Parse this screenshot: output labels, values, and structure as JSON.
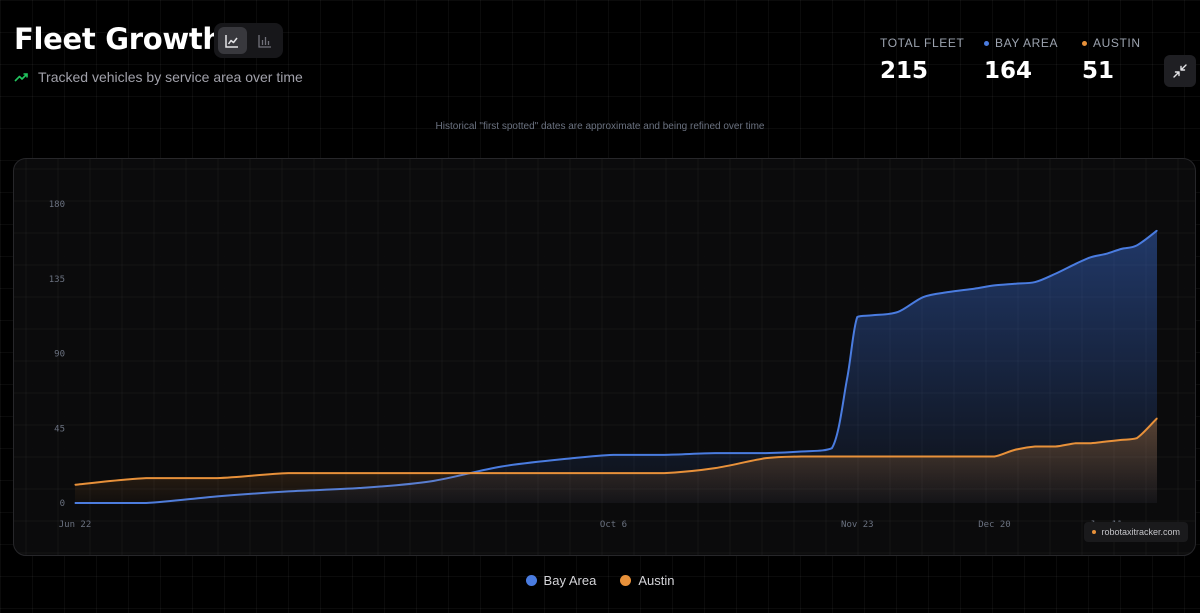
{
  "header": {
    "title": "Fleet Growth",
    "subtitle": "Tracked vehicles by service area over time"
  },
  "view_toggle": {
    "options": [
      "area-chart-icon",
      "bar-chart-icon"
    ],
    "active": "area-chart-icon"
  },
  "stats": [
    {
      "label": "TOTAL FLEET",
      "value": "215",
      "color": ""
    },
    {
      "label": "BAY AREA",
      "value": "164",
      "color": "#4a7ce0"
    },
    {
      "label": "AUSTIN",
      "value": "51",
      "color": "#e8913a"
    }
  ],
  "note": "Historical \"first spotted\" dates are approximate and being refined over time",
  "watermark": "robotaxitracker.com",
  "colors": {
    "bay_area": "#4a7ce0",
    "austin": "#e8913a",
    "accent_green": "#22c55e"
  },
  "chart_data": {
    "type": "area",
    "title": "",
    "xlabel": "",
    "ylabel": "",
    "x_ticks": [
      "Jun 22",
      "Oct 6",
      "Nov 23",
      "Dec 20",
      "Jan 11"
    ],
    "y_ticks": [
      "0",
      "45",
      "90",
      "135",
      "180"
    ],
    "ylim": [
      0,
      180
    ],
    "grid": true,
    "legend_position": "bottom-center",
    "x": [
      "Jun 22",
      "Jul 6",
      "Jul 20",
      "Aug 3",
      "Aug 17",
      "Aug 31",
      "Sep 14",
      "Sep 28",
      "Oct 6",
      "Oct 16",
      "Oct 26",
      "Nov 5",
      "Nov 12",
      "Nov 18",
      "Nov 21",
      "Nov 23",
      "Nov 26",
      "Dec 1",
      "Dec 6",
      "Dec 11",
      "Dec 16",
      "Dec 20",
      "Dec 24",
      "Dec 28",
      "Jan 1",
      "Jan 5",
      "Jan 8",
      "Jan 11",
      "Jan 14",
      "Jan 17",
      "Jan 21"
    ],
    "series": [
      {
        "name": "Bay Area",
        "color": "#4a7ce0",
        "values": [
          0,
          0,
          4,
          7,
          9,
          13,
          22,
          27,
          29,
          29,
          30,
          30,
          31,
          33,
          75,
          112,
          113,
          115,
          124,
          127,
          129,
          131,
          132,
          133,
          138,
          144,
          148,
          150,
          153,
          155,
          164
        ]
      },
      {
        "name": "Austin",
        "color": "#e8913a",
        "values": [
          11,
          15,
          15,
          18,
          18,
          18,
          18,
          18,
          18,
          18,
          21,
          27,
          28,
          28,
          28,
          28,
          28,
          28,
          28,
          28,
          28,
          28,
          32,
          34,
          34,
          36,
          36,
          37,
          38,
          39,
          51
        ]
      }
    ]
  }
}
